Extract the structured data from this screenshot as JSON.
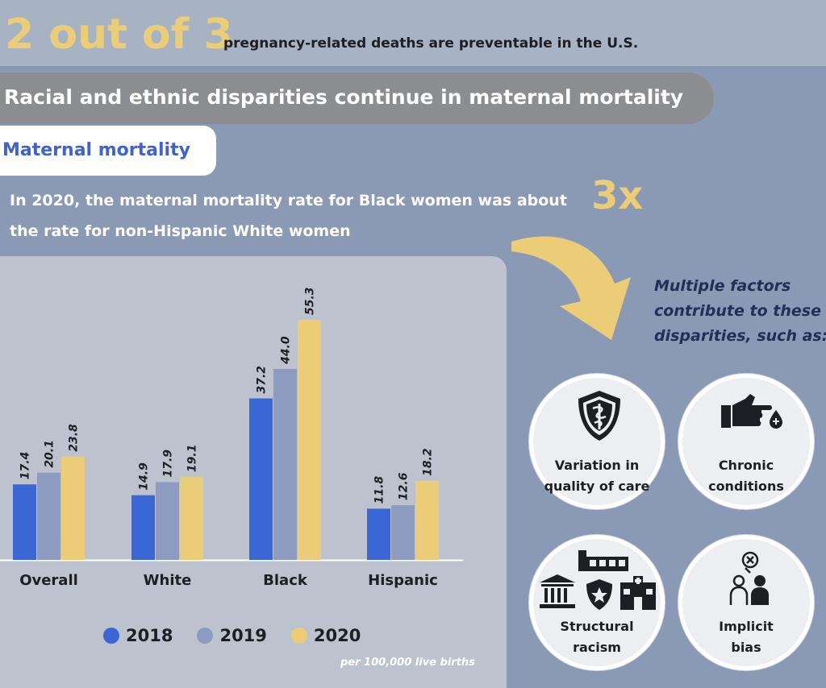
{
  "headline": {
    "number": "2 out of 3",
    "text": "pregnancy-related deaths are preventable in the U.S."
  },
  "banner": "Racial and ethnic disparities continue in maternal mortality",
  "section_title": "Maternal mortality",
  "intro": {
    "line1": "In 2020, the maternal mortality rate for Black women was about",
    "line2": "the rate for non-Hispanic White women",
    "multiplier": "3x"
  },
  "colors": {
    "2018": "#3b66d6",
    "2019": "#8c9bbf",
    "2020": "#ebcd77",
    "accent_gold": "#ebcd77"
  },
  "chart_data": {
    "type": "bar",
    "categories": [
      "Overall",
      "White",
      "Black",
      "Hispanic"
    ],
    "series": [
      {
        "name": "2018",
        "values": [
          17.4,
          14.9,
          37.2,
          11.8
        ]
      },
      {
        "name": "2019",
        "values": [
          20.1,
          17.9,
          44.0,
          12.6
        ]
      },
      {
        "name": "2020",
        "values": [
          23.8,
          19.1,
          55.3,
          18.2
        ]
      }
    ],
    "value_labels": [
      [
        "17.4",
        "14.9",
        "37.2",
        "11.8"
      ],
      [
        "20.1",
        "17.9",
        "44.0",
        "12.6"
      ],
      [
        "23.8",
        "19.1",
        "55.3",
        "18.2"
      ]
    ],
    "ylim": [
      0,
      60
    ],
    "grid": false,
    "legend_position": "bottom",
    "note": "per 100,000 live births"
  },
  "factors": {
    "heading_lines": [
      "Multiple factors",
      "contribute to these",
      "disparities, such as:"
    ],
    "items": [
      {
        "line1": "Variation in",
        "line2": "quality of care",
        "icon": "shield-caduceus-icon"
      },
      {
        "line1": "Chronic",
        "line2": "conditions",
        "icon": "hand-pointing-drop-icon"
      },
      {
        "line1": "Structural",
        "line2": "racism",
        "icon": "institutions-buildings-icon"
      },
      {
        "line1": "Implicit",
        "line2": "bias",
        "icon": "people-bias-icon"
      }
    ]
  }
}
